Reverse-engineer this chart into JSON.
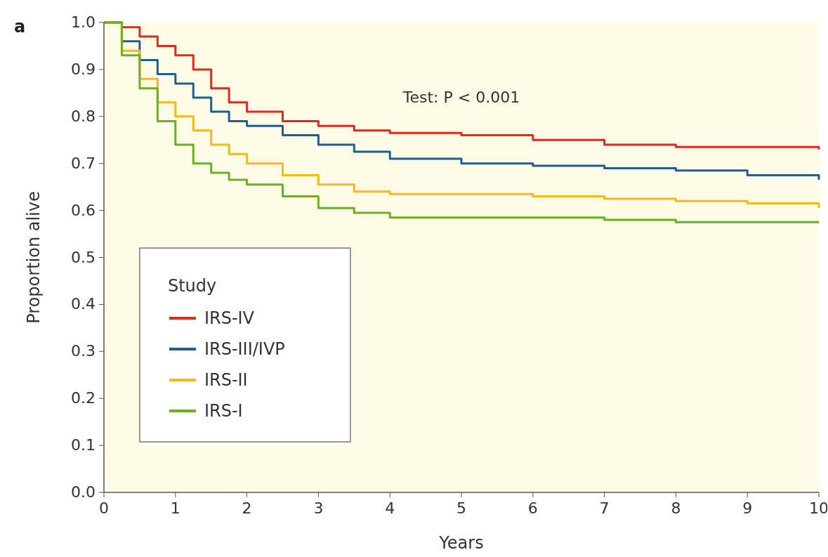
{
  "chart_data": {
    "type": "step",
    "xlabel": "Years",
    "ylabel": "Proportion alive",
    "legend_title": "Study",
    "legend": "bottom left",
    "grid": false,
    "annotations": [
      "a",
      "Test: P < 0.001"
    ],
    "xlim": [
      0,
      10
    ],
    "xticks": [
      0,
      1,
      2,
      3,
      4,
      5,
      6,
      7,
      8,
      9,
      10
    ],
    "ylim": [
      0,
      1
    ],
    "yticks": [
      {
        "value": 0,
        "label": "0.0"
      },
      {
        "value": 0.1,
        "label": "0.1"
      },
      {
        "value": 0.2,
        "label": "0.2"
      },
      {
        "value": 0.3,
        "label": "0.3"
      },
      {
        "value": 0.4,
        "label": "0.4"
      },
      {
        "value": 0.5,
        "label": "0.5"
      },
      {
        "value": 0.6,
        "label": "0.6"
      },
      {
        "value": 0.7,
        "label": "0.7"
      },
      {
        "value": 0.8,
        "label": "0.8"
      },
      {
        "value": 0.9,
        "label": "0.9"
      },
      {
        "value": 1,
        "label": "1.0"
      }
    ],
    "x": [
      0,
      0.25,
      0.5,
      0.75,
      1,
      1.25,
      1.5,
      1.75,
      2,
      2.5,
      3,
      3.5,
      4,
      5,
      6,
      7,
      8,
      9,
      10
    ],
    "series": [
      {
        "name": "IRS-IV",
        "color": "#e02a1e",
        "values": [
          1,
          0.99,
          0.97,
          0.95,
          0.93,
          0.9,
          0.86,
          0.83,
          0.81,
          0.79,
          0.78,
          0.77,
          0.765,
          0.76,
          0.75,
          0.74,
          0.735,
          0.735,
          0.73
        ]
      },
      {
        "name": "IRS-III/IVP",
        "color": "#1f5f8b",
        "values": [
          1,
          0.96,
          0.92,
          0.89,
          0.87,
          0.84,
          0.81,
          0.79,
          0.78,
          0.76,
          0.74,
          0.725,
          0.71,
          0.7,
          0.695,
          0.69,
          0.685,
          0.675,
          0.665
        ]
      },
      {
        "name": "IRS-II",
        "color": "#f6b81a",
        "values": [
          1,
          0.94,
          0.88,
          0.83,
          0.8,
          0.77,
          0.74,
          0.72,
          0.7,
          0.675,
          0.655,
          0.64,
          0.635,
          0.635,
          0.63,
          0.625,
          0.62,
          0.615,
          0.605
        ]
      },
      {
        "name": "IRS-I",
        "color": "#6ab023",
        "values": [
          1,
          0.93,
          0.86,
          0.79,
          0.74,
          0.7,
          0.68,
          0.665,
          0.655,
          0.63,
          0.605,
          0.595,
          0.585,
          0.585,
          0.585,
          0.58,
          0.575,
          0.575,
          0.575
        ]
      }
    ]
  }
}
